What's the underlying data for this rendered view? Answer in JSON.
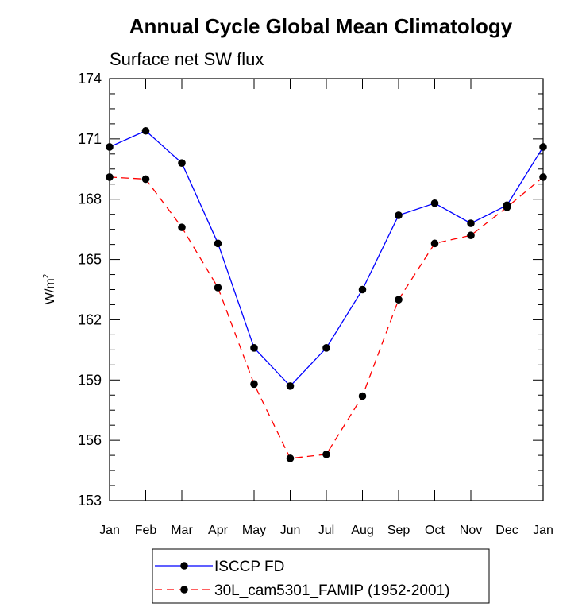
{
  "chart_data": {
    "type": "line",
    "title": "Annual Cycle Global Mean Climatology",
    "subtitle": "Surface net SW flux",
    "ylabel": "W/m",
    "ylabel_sup": "2",
    "xlabel": "",
    "categories": [
      "Jan",
      "Feb",
      "Mar",
      "Apr",
      "May",
      "Jun",
      "Jul",
      "Aug",
      "Sep",
      "Oct",
      "Nov",
      "Dec",
      "Jan"
    ],
    "ylim": [
      153,
      174
    ],
    "yticks": [
      153,
      156,
      159,
      162,
      165,
      168,
      171,
      174
    ],
    "grid": false,
    "legend_position": "bottom",
    "series": [
      {
        "name": "ISCCP FD",
        "color": "#0000ff",
        "dash": "solid",
        "marker": "circle",
        "values": [
          170.6,
          171.4,
          169.8,
          165.8,
          160.6,
          158.7,
          160.6,
          163.5,
          167.2,
          167.8,
          166.8,
          167.7,
          170.6
        ]
      },
      {
        "name": "30L_cam5301_FAMIP (1952-2001)",
        "color": "#ff0000",
        "dash": "dashed",
        "marker": "circle",
        "values": [
          169.1,
          169.0,
          166.6,
          163.6,
          158.8,
          155.1,
          155.3,
          158.2,
          163.0,
          165.8,
          166.2,
          167.6,
          169.1
        ]
      }
    ]
  }
}
